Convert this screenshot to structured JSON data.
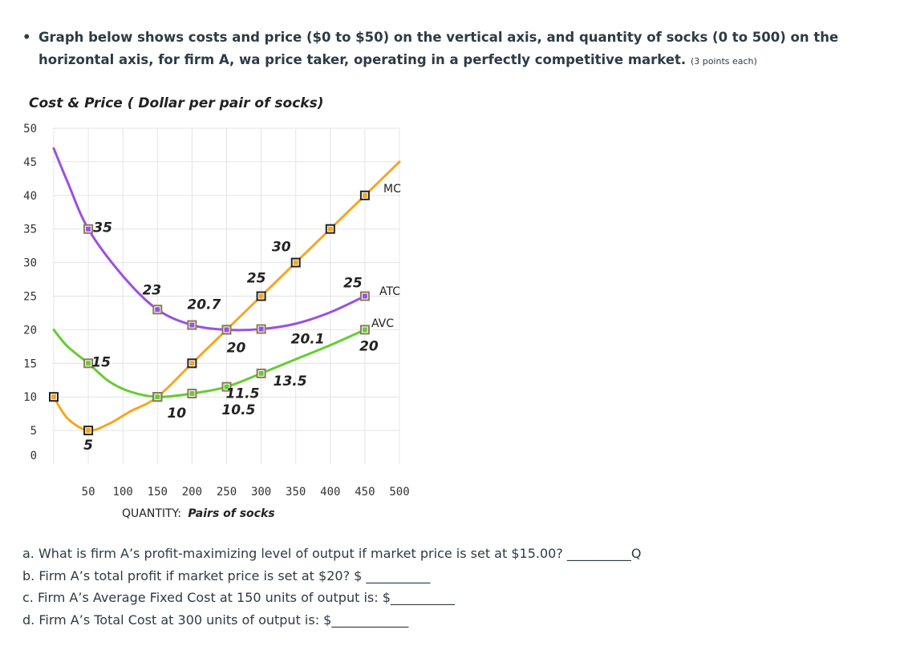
{
  "intro": {
    "bullet": "•",
    "text": "Graph below shows costs and price ($0 to $50) on the vertical axis, and quantity of socks (0 to 500) on the horizontal axis, for firm A, wa price taker, operating in a perfectly competitive market.",
    "points": "(3 points each)"
  },
  "chart_data": {
    "type": "line",
    "ylabel": "Cost & Price ( Dollar per pair of socks)",
    "xlabel_prefix": "QUANTITY:",
    "xlabel_suffix": "Pairs of socks",
    "x_ticks": [
      "50",
      "100",
      "150",
      "200",
      "250",
      "300",
      "350",
      "400",
      "450",
      "500"
    ],
    "y_ticks": [
      "0",
      "5",
      "10",
      "15",
      "20",
      "25",
      "30",
      "35",
      "40",
      "45",
      "50"
    ],
    "xlim": [
      0,
      500
    ],
    "ylim": [
      0,
      50
    ],
    "grid": true,
    "series": [
      {
        "name": "MC",
        "color": "#f5a623",
        "markers": [
          [
            0,
            10
          ],
          [
            50,
            5
          ],
          [
            150,
            10
          ],
          [
            200,
            15
          ],
          [
            250,
            20
          ],
          [
            300,
            25
          ],
          [
            350,
            30
          ],
          [
            400,
            35
          ],
          [
            450,
            40
          ]
        ],
        "curve": [
          [
            0,
            10
          ],
          [
            20,
            6.8
          ],
          [
            50,
            5
          ],
          [
            80,
            6
          ],
          [
            110,
            7.8
          ],
          [
            150,
            10
          ],
          [
            200,
            15
          ],
          [
            250,
            20
          ],
          [
            300,
            25
          ],
          [
            350,
            30
          ],
          [
            400,
            35
          ],
          [
            450,
            40
          ],
          [
            500,
            45
          ]
        ]
      },
      {
        "name": "ATC",
        "color": "#9b51e0",
        "markers": [
          [
            50,
            35
          ],
          [
            150,
            23
          ],
          [
            200,
            20.7
          ],
          [
            250,
            20
          ],
          [
            300,
            20.1
          ],
          [
            450,
            25
          ]
        ],
        "curve": [
          [
            0,
            47
          ],
          [
            20,
            42
          ],
          [
            50,
            35
          ],
          [
            100,
            28
          ],
          [
            150,
            23
          ],
          [
            200,
            20.7
          ],
          [
            250,
            20
          ],
          [
            300,
            20.1
          ],
          [
            350,
            20.9
          ],
          [
            400,
            22.6
          ],
          [
            450,
            25
          ]
        ]
      },
      {
        "name": "AVC",
        "color": "#66cc33",
        "markers": [
          [
            50,
            15
          ],
          [
            150,
            10
          ],
          [
            200,
            10.5
          ],
          [
            250,
            11.5
          ],
          [
            300,
            13.5
          ],
          [
            450,
            20
          ]
        ],
        "curve": [
          [
            0,
            20
          ],
          [
            20,
            17.5
          ],
          [
            50,
            15
          ],
          [
            80,
            12.3
          ],
          [
            110,
            10.8
          ],
          [
            150,
            10
          ],
          [
            200,
            10.5
          ],
          [
            250,
            11.5
          ],
          [
            300,
            13.5
          ],
          [
            350,
            15.6
          ],
          [
            400,
            17.7
          ],
          [
            450,
            20
          ]
        ]
      }
    ],
    "data_labels": [
      {
        "text": "35",
        "x": 50,
        "y": 35
      },
      {
        "text": "15",
        "x": 50,
        "y": 15
      },
      {
        "text": "5",
        "x": 50,
        "y": 5
      },
      {
        "text": "23",
        "x": 150,
        "y": 23
      },
      {
        "text": "20.7",
        "x": 200,
        "y": 20.7
      },
      {
        "text": "10",
        "x": 150,
        "y": 10
      },
      {
        "text": "10.5",
        "x": 200,
        "y": 10.5
      },
      {
        "text": "20",
        "x": 250,
        "y": 20
      },
      {
        "text": "25",
        "x": 300,
        "y": 25
      },
      {
        "text": "20.1",
        "x": 300,
        "y": 20.1
      },
      {
        "text": "11.5",
        "x": 250,
        "y": 11.5
      },
      {
        "text": "30",
        "x": 350,
        "y": 30
      },
      {
        "text": "13.5",
        "x": 300,
        "y": 13.5
      },
      {
        "text": "25",
        "x": 450,
        "y": 25
      },
      {
        "text": "20",
        "x": 450,
        "y": 20
      }
    ]
  },
  "questions": [
    {
      "prefix": "a. What is firm A’s profit-maximizing level of output if market price is set at $15.00? ",
      "blank": "__________",
      "suffix": "Q"
    },
    {
      "prefix": "b. Firm A’s total profit if market price is set at $20? $ ",
      "blank": "__________",
      "suffix": ""
    },
    {
      "prefix": "c. Firm A’s Average Fixed Cost at 150 units of output is: $",
      "blank": "__________",
      "suffix": ""
    },
    {
      "prefix": "d. Firm A’s Total Cost at 300 units of output is: $",
      "blank": "____________",
      "suffix": ""
    }
  ]
}
